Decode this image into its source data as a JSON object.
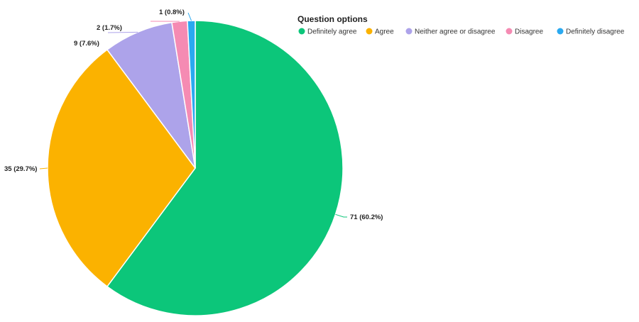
{
  "chart_data": {
    "type": "pie",
    "legend": {
      "title": "Question options",
      "placement": "top-right"
    },
    "slices": [
      {
        "name": "Definitely agree",
        "value": 71,
        "label": "71 (60.2%)",
        "color": "#0cc67a"
      },
      {
        "name": "Agree",
        "value": 35,
        "label": "35 (29.7%)",
        "color": "#fbb200"
      },
      {
        "name": "Neither agree or disagree",
        "value": 9,
        "label": "9 (7.6%)",
        "color": "#ada3ea"
      },
      {
        "name": "Disagree",
        "value": 2,
        "label": "2 (1.7%)",
        "color": "#f58bb3"
      },
      {
        "name": "Definitely disagree",
        "value": 1,
        "label": "1 (0.8%)",
        "color": "#2aa9f0"
      }
    ]
  }
}
